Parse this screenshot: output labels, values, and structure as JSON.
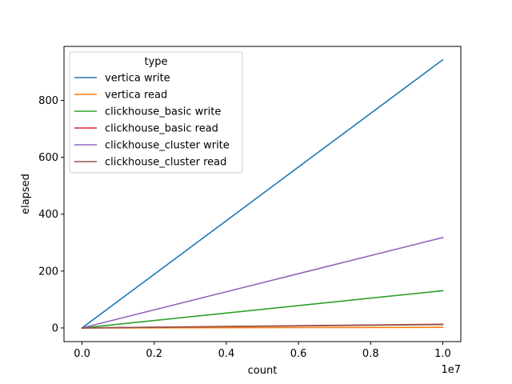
{
  "chart_data": {
    "type": "line",
    "xlabel": "count",
    "ylabel": "elapsed",
    "x_offset_label": "1e7",
    "xlim": [
      -500000,
      10500000
    ],
    "ylim": [
      -48,
      990
    ],
    "x_ticks": [
      0,
      2000000,
      4000000,
      6000000,
      8000000,
      10000000
    ],
    "x_tick_labels": [
      "0.0",
      "0.2",
      "0.4",
      "0.6",
      "0.8",
      "1.0"
    ],
    "y_ticks": [
      0,
      200,
      400,
      600,
      800
    ],
    "y_tick_labels": [
      "0",
      "200",
      "400",
      "600",
      "800"
    ],
    "grid": false,
    "legend": {
      "title": "type",
      "placement": "top-left"
    },
    "series": [
      {
        "name": "vertica write",
        "color": "#1f77b4",
        "x": [
          0,
          10000000
        ],
        "y": [
          0,
          943
        ]
      },
      {
        "name": "vertica read",
        "color": "#ff7f0e",
        "x": [
          0,
          10000000
        ],
        "y": [
          0,
          2
        ]
      },
      {
        "name": "clickhouse_basic write",
        "color": "#2ca02c",
        "x": [
          0,
          10000000
        ],
        "y": [
          0,
          131
        ]
      },
      {
        "name": "clickhouse_basic read",
        "color": "#d62728",
        "x": [
          0,
          10000000
        ],
        "y": [
          0,
          13
        ]
      },
      {
        "name": "clickhouse_cluster write",
        "color": "#9467bd",
        "x": [
          0,
          10000000
        ],
        "y": [
          0,
          318
        ]
      },
      {
        "name": "clickhouse_cluster read",
        "color": "#8c564b",
        "x": [
          0,
          10000000
        ],
        "y": [
          0,
          12
        ]
      }
    ]
  }
}
